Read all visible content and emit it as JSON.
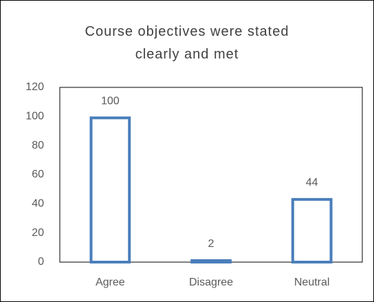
{
  "chart_data": {
    "type": "bar",
    "title": "Course objectives were stated clearly and met",
    "categories": [
      "Agree",
      "Disagree",
      "Neutral"
    ],
    "values": [
      100,
      2,
      44
    ],
    "color": "#4a7ebb",
    "ylim": [
      0,
      120
    ],
    "yticks": [
      0,
      20,
      40,
      60,
      80,
      100,
      120
    ],
    "grid": false
  }
}
